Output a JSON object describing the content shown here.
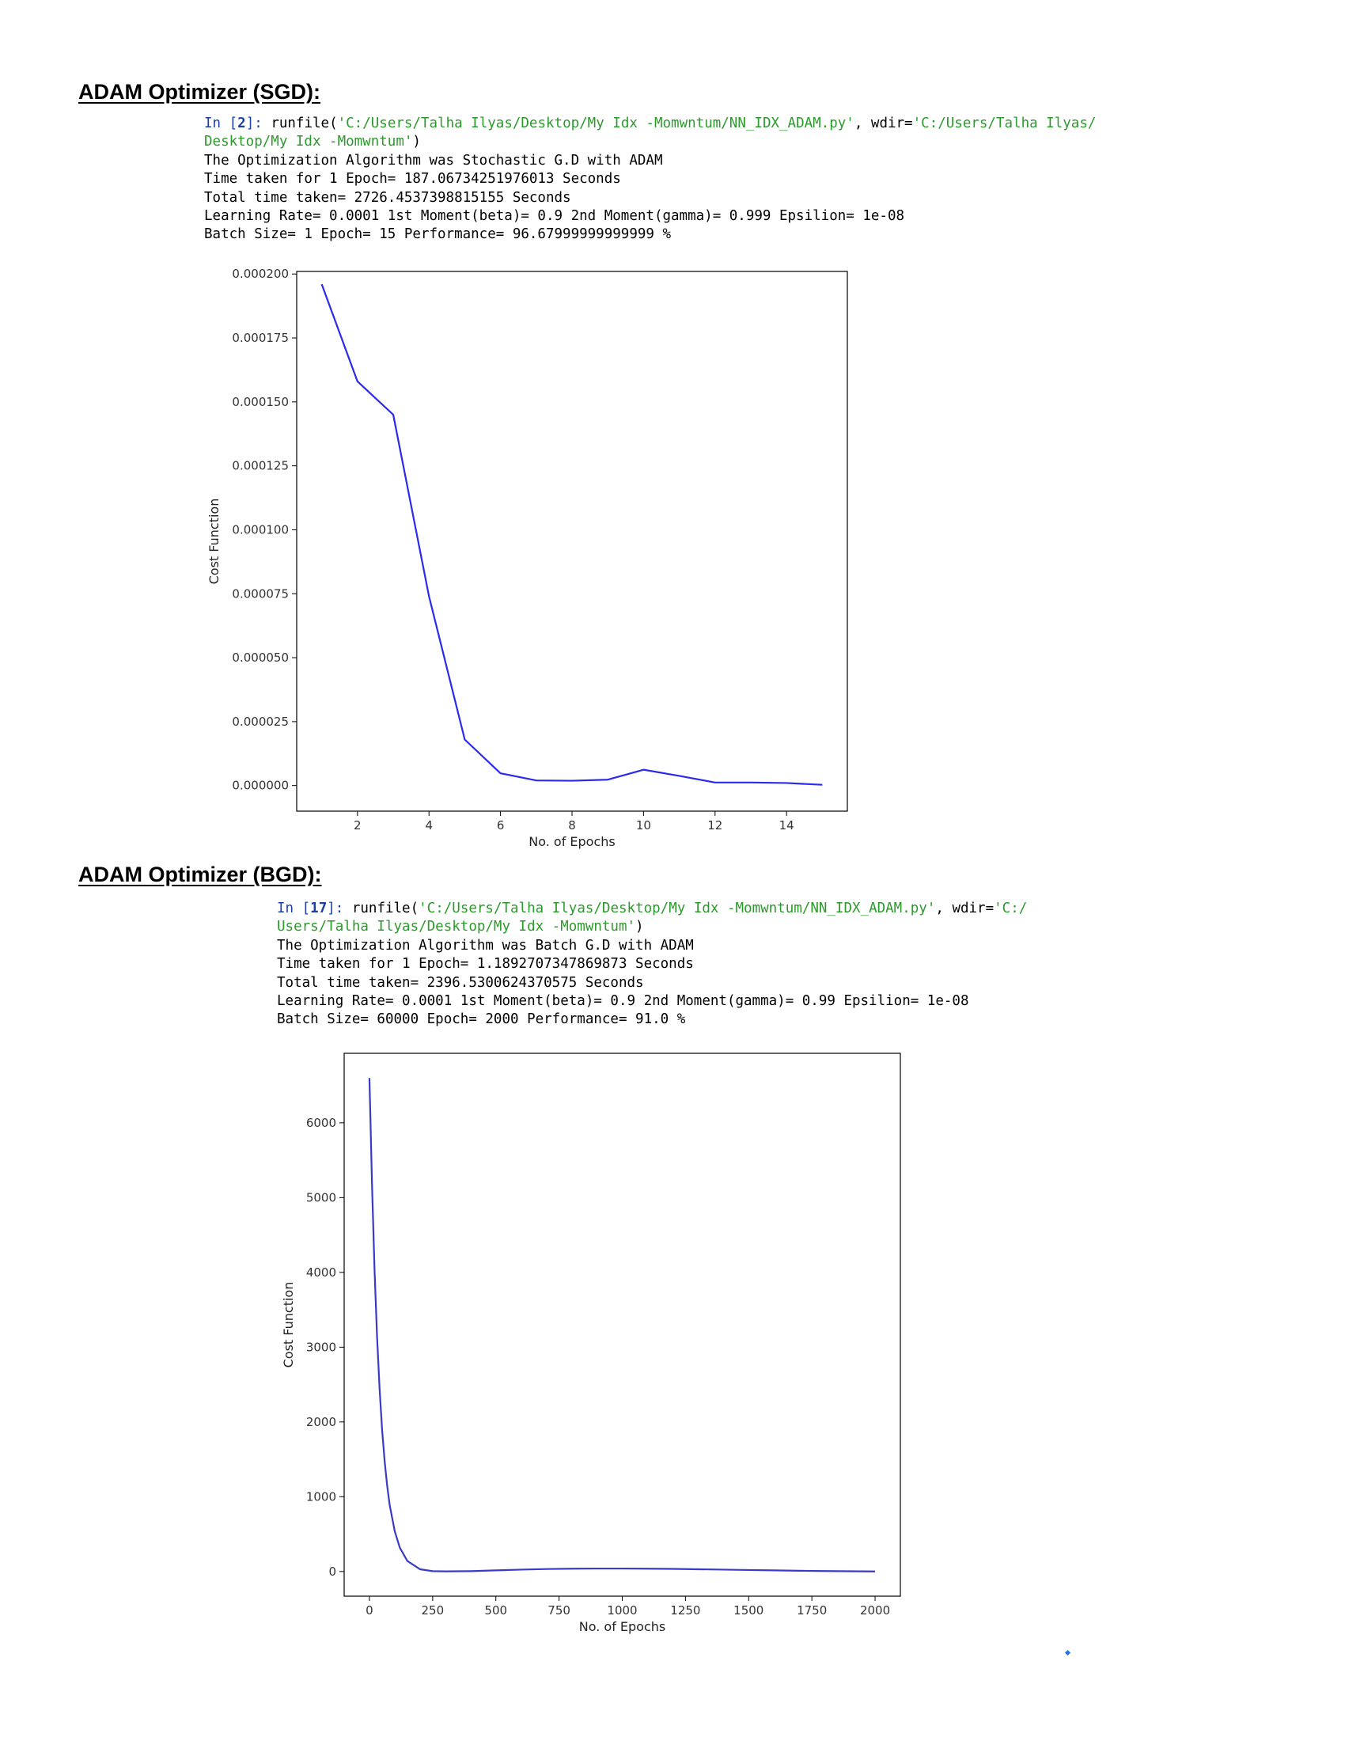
{
  "sections": [
    {
      "heading": "ADAM Optimizer (SGD):",
      "console": {
        "prompt_prefix": "In [",
        "prompt_number": "2",
        "prompt_suffix": "]: ",
        "call_name": "runfile(",
        "arg_file": "'C:/Users/Talha Ilyas/Desktop/My Idx -Momwntum/NN_IDX_ADAM.py'",
        "mid": ", wdir=",
        "wdir_line1": "'C:/Users/Talha Ilyas/",
        "wdir_line2": "Desktop/My Idx -Momwntum'",
        "close": ")",
        "lines": [
          "The Optimization Algorithm was Stochastic G.D with ADAM",
          "Time taken for 1 Epoch= 187.06734251976013 Seconds",
          "Total time taken= 2726.4537398815155 Seconds",
          "Learning Rate= 0.0001 1st Moment(beta)= 0.9 2nd Moment(gamma)= 0.999 Epsilion= 1e-08",
          "Batch Size= 1 Epoch= 15 Performance= 96.67999999999999 %"
        ]
      }
    },
    {
      "heading": "ADAM Optimizer (BGD):",
      "console": {
        "prompt_prefix": "In [",
        "prompt_number": "17",
        "prompt_suffix": "]: ",
        "call_name": "runfile(",
        "arg_file": "'C:/Users/Talha Ilyas/Desktop/My Idx -Momwntum/NN_IDX_ADAM.py'",
        "mid": ", wdir=",
        "wdir_line1": "'C:/",
        "wdir_line2": "Users/Talha Ilyas/Desktop/My Idx -Momwntum'",
        "close": ")",
        "lines": [
          "The Optimization Algorithm was Batch G.D with ADAM",
          "Time taken for 1 Epoch= 1.1892707347869873 Seconds",
          "Total time taken= 2396.5300624370575 Seconds",
          "Learning Rate= 0.0001 1st Moment(beta)= 0.9 2nd Moment(gamma)= 0.99 Epsilion= 1e-08",
          "Batch Size= 60000 Epoch= 2000 Performance= 91.0 %"
        ]
      }
    }
  ],
  "chart_data": [
    {
      "type": "line",
      "title": "",
      "xlabel": "No. of Epochs",
      "ylabel": "Cost Function",
      "xlim": [
        0.3,
        15.7
      ],
      "ylim": [
        -1e-05,
        0.000201
      ],
      "xticks": [
        2,
        4,
        6,
        8,
        10,
        12,
        14
      ],
      "xtick_labels": [
        "2",
        "4",
        "6",
        "8",
        "10",
        "12",
        "14"
      ],
      "yticks": [
        0,
        2.5e-05,
        5e-05,
        7.5e-05,
        0.0001,
        0.000125,
        0.00015,
        0.000175,
        0.0002
      ],
      "ytick_labels": [
        "0.000000",
        "0.000025",
        "0.000050",
        "0.000075",
        "0.000100",
        "0.000125",
        "0.000150",
        "0.000175",
        "0.000200"
      ],
      "grid": false,
      "line_color": "#2a2aee",
      "series": [
        {
          "x": [
            1,
            2,
            3,
            4,
            5,
            6,
            7,
            8,
            9,
            10,
            11,
            12,
            13,
            14,
            15
          ],
          "values": [
            0.000196,
            0.000158,
            0.000145,
            7.4e-05,
            1.8e-05,
            4.8e-06,
            2e-06,
            1.9e-06,
            2.3e-06,
            6.2e-06,
            3.8e-06,
            1.2e-06,
            1.2e-06,
            1e-06,
            3e-07
          ]
        }
      ]
    },
    {
      "type": "line",
      "title": "",
      "xlabel": "No. of Epochs",
      "ylabel": "Cost Function",
      "xlim": [
        -100,
        2100
      ],
      "ylim": [
        -330,
        6930
      ],
      "xticks": [
        0,
        250,
        500,
        750,
        1000,
        1250,
        1500,
        1750,
        2000
      ],
      "xtick_labels": [
        "0",
        "250",
        "500",
        "750",
        "1000",
        "1250",
        "1500",
        "1750",
        "2000"
      ],
      "yticks": [
        0,
        1000,
        2000,
        3000,
        4000,
        5000,
        6000
      ],
      "ytick_labels": [
        "0",
        "1000",
        "2000",
        "3000",
        "4000",
        "5000",
        "6000"
      ],
      "grid": false,
      "line_color": "#3a3ac8",
      "series": [
        {
          "x": [
            0,
            10,
            20,
            30,
            40,
            50,
            60,
            70,
            80,
            100,
            120,
            150,
            200,
            250,
            300,
            400,
            500,
            600,
            700,
            800,
            900,
            1000,
            1100,
            1200,
            1300,
            1400,
            1500,
            1600,
            1700,
            1800,
            1900,
            2000
          ],
          "values": [
            6600,
            5200,
            4050,
            3150,
            2450,
            1900,
            1480,
            1150,
            890,
            540,
            320,
            140,
            30,
            5,
            2,
            5,
            15,
            25,
            33,
            38,
            40,
            40,
            38,
            35,
            30,
            25,
            20,
            15,
            10,
            6,
            3,
            1
          ]
        }
      ]
    }
  ]
}
